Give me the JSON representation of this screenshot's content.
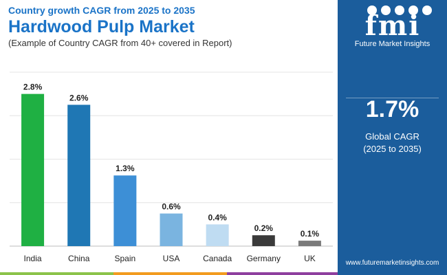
{
  "header": {
    "subtitle_top": "Country growth CAGR from 2025 to 2035",
    "title": "Hardwood Pulp Market",
    "caption": "(Example of Country CAGR from 40+ covered in Report)"
  },
  "sidebar": {
    "logo_text": "fmi",
    "brand": "Future Market Insights",
    "cagr_value": "1.7%",
    "cagr_label_line1": "Global CAGR",
    "cagr_label_line2": "(2025 to 2035)",
    "url": "www.futuremarketinsights.com",
    "bg_color": "#1b5d9c"
  },
  "chart_data": {
    "type": "bar",
    "title": "",
    "xlabel": "",
    "ylabel": "",
    "categories": [
      "India",
      "China",
      "Spain",
      "USA",
      "Canada",
      "Germany",
      "UK"
    ],
    "values": [
      2.8,
      2.6,
      1.3,
      0.6,
      0.4,
      0.2,
      0.1
    ],
    "value_labels": [
      "2.8%",
      "2.6%",
      "1.3%",
      "0.6%",
      "0.4%",
      "0.2%",
      "0.1%"
    ],
    "colors": [
      "#1fb043",
      "#1f77b4",
      "#3d8fd6",
      "#7ab4e0",
      "#bfdcf2",
      "#3a3a3a",
      "#7a7a7a"
    ],
    "ylim": [
      0,
      3.2
    ],
    "grid": true,
    "legend": "none"
  },
  "bottom_bar_colors": [
    "#8bc34a",
    "#f29b1f",
    "#8e3f9e",
    "#1b5d9c"
  ]
}
